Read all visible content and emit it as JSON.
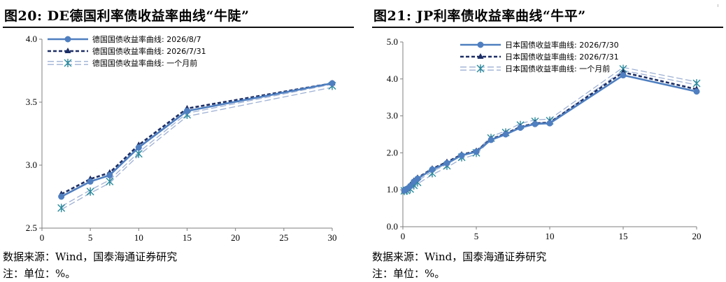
{
  "charts": [
    {
      "title": "图20:  DE德国利率债收益率曲线“牛陡”",
      "source": "数据来源：Wind，国泰海通证券研究",
      "note": "注：单位：%。"
    },
    {
      "title": "图21:  JP利率债收益率曲线“牛平”",
      "source": "数据来源：Wind，国泰海通证券研究",
      "note": "注：单位：%。"
    }
  ],
  "chart_data": [
    {
      "type": "line",
      "title": "图20:  DE德国利率债收益率曲线“牛陡”",
      "xlabel": "",
      "ylabel": "",
      "xlim": [
        0,
        30
      ],
      "ylim": [
        2.5,
        4.0
      ],
      "xticks": [
        0,
        5,
        10,
        15,
        20,
        25,
        30
      ],
      "yticks": [
        2.5,
        3.0,
        3.5,
        4.0
      ],
      "ytick_labels": [
        "2.5",
        "3.0",
        "3.5",
        "4.0"
      ],
      "grid": false,
      "legend_position": "top-center",
      "series": [
        {
          "name": "德国国债收益率曲线: 2026/8/7",
          "style": "solid",
          "marker": "circle",
          "color": "#4f7fc0",
          "x": [
            2,
            5,
            7,
            10,
            15,
            30
          ],
          "y": [
            2.75,
            2.87,
            2.92,
            3.14,
            3.43,
            3.65
          ]
        },
        {
          "name": "德国国债收益率曲线: 2026/7/31",
          "style": "dashed",
          "marker": "triangle",
          "color": "#1c2e66",
          "x": [
            2,
            5,
            7,
            10,
            15,
            30
          ],
          "y": [
            2.77,
            2.89,
            2.94,
            3.16,
            3.45,
            3.65
          ]
        },
        {
          "name": "德国国债收益率曲线: 一个月前",
          "style": "double-dash",
          "marker": "asterisk",
          "color": "#9db0d4",
          "marker_color": "#2a8a9c",
          "x": [
            2,
            5,
            7,
            10,
            15,
            30
          ],
          "y": [
            2.66,
            2.79,
            2.87,
            3.09,
            3.4,
            3.63
          ]
        }
      ]
    },
    {
      "type": "line",
      "title": "图21:  JP利率债收益率曲线“牛平”",
      "xlabel": "",
      "ylabel": "",
      "xlim": [
        0,
        20
      ],
      "ylim": [
        0.0,
        5.0
      ],
      "xticks": [
        0,
        5,
        10,
        15,
        20
      ],
      "yticks": [
        0.0,
        1.0,
        2.0,
        3.0,
        4.0,
        5.0
      ],
      "ytick_labels": [
        "0.0",
        "1.0",
        "2.0",
        "3.0",
        "4.0",
        "5.0"
      ],
      "grid": false,
      "legend_position": "top-center",
      "series": [
        {
          "name": "日本国债收益率曲线: 2026/7/30",
          "style": "solid",
          "marker": "circle",
          "color": "#4f7fc0",
          "x": [
            0.1,
            0.25,
            0.5,
            0.75,
            1,
            2,
            3,
            4,
            5,
            6,
            7,
            8,
            9,
            10,
            15,
            20
          ],
          "y": [
            0.98,
            1.02,
            1.1,
            1.22,
            1.3,
            1.55,
            1.72,
            1.93,
            2.03,
            2.35,
            2.5,
            2.68,
            2.78,
            2.8,
            4.1,
            3.66
          ]
        },
        {
          "name": "日本国债收益率曲线: 2026/7/31",
          "style": "dashed",
          "marker": "triangle",
          "color": "#1c2e66",
          "x": [
            0.1,
            0.25,
            0.5,
            0.75,
            1,
            2,
            3,
            4,
            5,
            6,
            7,
            8,
            9,
            10,
            15,
            20
          ],
          "y": [
            0.98,
            1.02,
            1.12,
            1.24,
            1.32,
            1.57,
            1.75,
            1.95,
            2.05,
            2.37,
            2.52,
            2.7,
            2.8,
            2.82,
            4.18,
            3.72
          ]
        },
        {
          "name": "日本国债收益率曲线: 一个月前",
          "style": "double-dash",
          "marker": "asterisk",
          "color": "#9db0d4",
          "marker_color": "#2a8a9c",
          "x": [
            0.1,
            0.25,
            0.5,
            0.75,
            1,
            2,
            3,
            4,
            5,
            6,
            7,
            8,
            9,
            10,
            15,
            20
          ],
          "y": [
            0.97,
            0.98,
            1.02,
            1.12,
            1.2,
            1.45,
            1.65,
            1.88,
            2.0,
            2.4,
            2.55,
            2.75,
            2.85,
            2.87,
            4.27,
            3.88
          ]
        }
      ]
    }
  ]
}
